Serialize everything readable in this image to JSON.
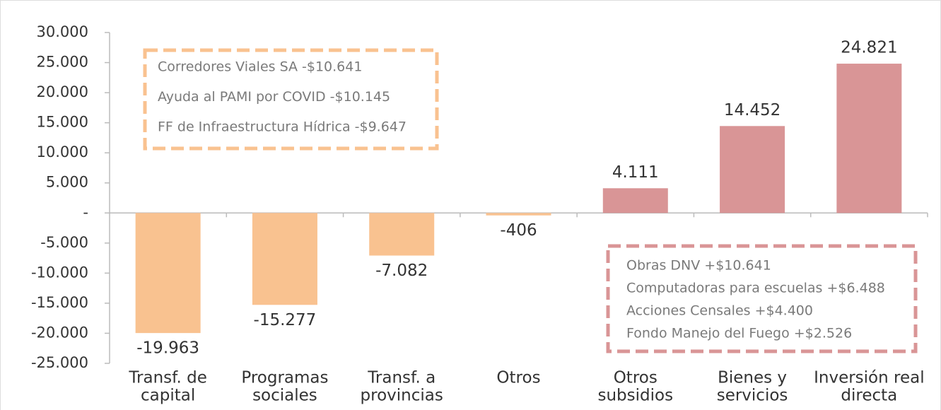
{
  "chart_data": {
    "type": "bar",
    "categories": [
      [
        "Transf. de",
        "capital"
      ],
      [
        "Programas",
        "sociales"
      ],
      [
        "Transf. a",
        "provincias"
      ],
      [
        "Otros"
      ],
      [
        "Otros",
        "subsidios"
      ],
      [
        "Bienes y",
        "servicios"
      ],
      [
        "Inversión real",
        "directa"
      ]
    ],
    "values": [
      -19963,
      -15277,
      -7082,
      -406,
      4111,
      14452,
      24821
    ],
    "value_labels": [
      "-19.963",
      "-15.277",
      "-7.082",
      "-406",
      "4.111",
      "14.452",
      "24.821"
    ],
    "colors": [
      "#f9c290",
      "#f9c290",
      "#f9c290",
      "#f9c290",
      "#d99596",
      "#d99596",
      "#d99596"
    ],
    "ylim": [
      -25000,
      30000
    ],
    "yticks": [
      {
        "value": -25000,
        "label": "-25.000"
      },
      {
        "value": -20000,
        "label": "-20.000"
      },
      {
        "value": -15000,
        "label": "-15.000"
      },
      {
        "value": -10000,
        "label": "-10.000"
      },
      {
        "value": -5000,
        "label": "-5.000"
      },
      {
        "value": 0,
        "label": "-"
      },
      {
        "value": 5000,
        "label": "5.000"
      },
      {
        "value": 10000,
        "label": "10.000"
      },
      {
        "value": 15000,
        "label": "15.000"
      },
      {
        "value": 20000,
        "label": "20.000"
      },
      {
        "value": 25000,
        "label": "25.000"
      },
      {
        "value": 30000,
        "label": "30.000"
      }
    ],
    "annotations": [
      {
        "color": "#f9c290",
        "lines": [
          "Corredores Viales SA -$10.641",
          "Ayuda al PAMI por COVID -$10.145",
          "FF de Infraestructura Hídrica -$9.647"
        ]
      },
      {
        "color": "#d99596",
        "lines": [
          "Obras DNV +$10.641",
          "Computadoras para escuelas +$6.488",
          "Acciones Censales +$4.400",
          "Fondo Manejo del Fuego +$2.526"
        ]
      }
    ]
  }
}
